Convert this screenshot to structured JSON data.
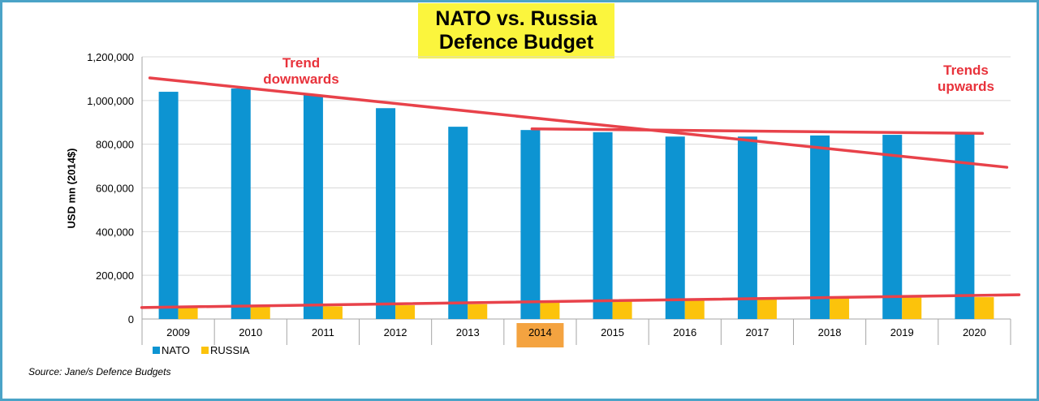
{
  "chart_data": {
    "type": "bar",
    "title_lines": [
      "NATO vs. Russia",
      "Defence Budget"
    ],
    "ylabel": "USD mn (2014$)",
    "xlabel": "",
    "ylim": [
      0,
      1200000
    ],
    "y_ticks": [
      {
        "value": 0,
        "label": "0"
      },
      {
        "value": 200000,
        "label": "200,000"
      },
      {
        "value": 400000,
        "label": "400,000"
      },
      {
        "value": 600000,
        "label": "600,000"
      },
      {
        "value": 800000,
        "label": "800,000"
      },
      {
        "value": 1000000,
        "label": "1,000,000"
      },
      {
        "value": 1200000,
        "label": "1,200,000"
      }
    ],
    "grid": true,
    "legend_position": "bottom-left",
    "categories": [
      "2009",
      "2010",
      "2011",
      "2012",
      "2013",
      "2014",
      "2015",
      "2016",
      "2017",
      "2018",
      "2019",
      "2020"
    ],
    "highlighted_category": "2014",
    "highlight_color": "#f4a340",
    "series": [
      {
        "name": "NATO",
        "color": "#0d94d2",
        "values": [
          1040000,
          1055000,
          1025000,
          965000,
          880000,
          865000,
          855000,
          835000,
          835000,
          840000,
          843000,
          848000
        ]
      },
      {
        "name": "RUSSIA",
        "color": "#fcc30b",
        "values": [
          55000,
          58000,
          58000,
          63000,
          68000,
          75000,
          80000,
          87000,
          90000,
          95000,
          98000,
          100000
        ]
      }
    ],
    "trend_color": "#e8424a",
    "trend_lines": [
      {
        "from": {
          "x": "2009",
          "y": 1090000
        },
        "to": {
          "x": "2020",
          "y": 710000
        }
      },
      {
        "from": {
          "x": "2014",
          "y": 870000
        },
        "to": {
          "x": "2020",
          "y": 850000
        }
      },
      {
        "from": {
          "x": "2009",
          "y": 55000
        },
        "to": {
          "x": "2020",
          "y": 108000
        }
      }
    ],
    "annotations": [
      {
        "lines": [
          "Trend",
          "downwards"
        ]
      },
      {
        "lines": [
          "Trends",
          "upwards"
        ]
      }
    ],
    "source": "Source: Jane/s Defence Budgets"
  }
}
